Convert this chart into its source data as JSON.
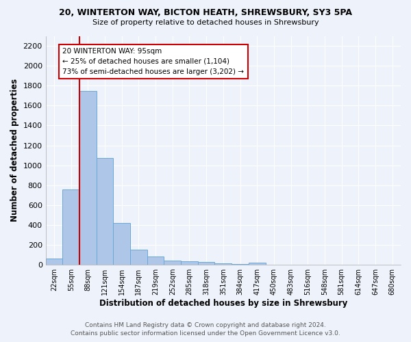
{
  "title_line1": "20, WINTERTON WAY, BICTON HEATH, SHREWSBURY, SY3 5PA",
  "title_line2": "Size of property relative to detached houses in Shrewsbury",
  "xlabel": "Distribution of detached houses by size in Shrewsbury",
  "ylabel": "Number of detached properties",
  "bar_labels": [
    "22sqm",
    "55sqm",
    "88sqm",
    "121sqm",
    "154sqm",
    "187sqm",
    "219sqm",
    "252sqm",
    "285sqm",
    "318sqm",
    "351sqm",
    "384sqm",
    "417sqm",
    "450sqm",
    "483sqm",
    "516sqm",
    "548sqm",
    "581sqm",
    "614sqm",
    "647sqm",
    "680sqm"
  ],
  "bar_values": [
    60,
    760,
    1750,
    1075,
    420,
    155,
    80,
    45,
    35,
    25,
    15,
    10,
    20,
    0,
    0,
    0,
    0,
    0,
    0,
    0,
    0
  ],
  "bar_color": "#aec6e8",
  "bar_edge_color": "#6aa8d8",
  "vline_x": 1.5,
  "vline_color": "#cc0000",
  "annotation_text": "20 WINTERTON WAY: 95sqm\n← 25% of detached houses are smaller (1,104)\n73% of semi-detached houses are larger (3,202) →",
  "annotation_box_color": "white",
  "annotation_box_edge": "#cc0000",
  "ylim": [
    0,
    2300
  ],
  "yticks": [
    0,
    200,
    400,
    600,
    800,
    1000,
    1200,
    1400,
    1600,
    1800,
    2000,
    2200
  ],
  "footer_line1": "Contains HM Land Registry data © Crown copyright and database right 2024.",
  "footer_line2": "Contains public sector information licensed under the Open Government Licence v3.0.",
  "bg_color": "#eef2fb",
  "grid_color": "#ffffff"
}
